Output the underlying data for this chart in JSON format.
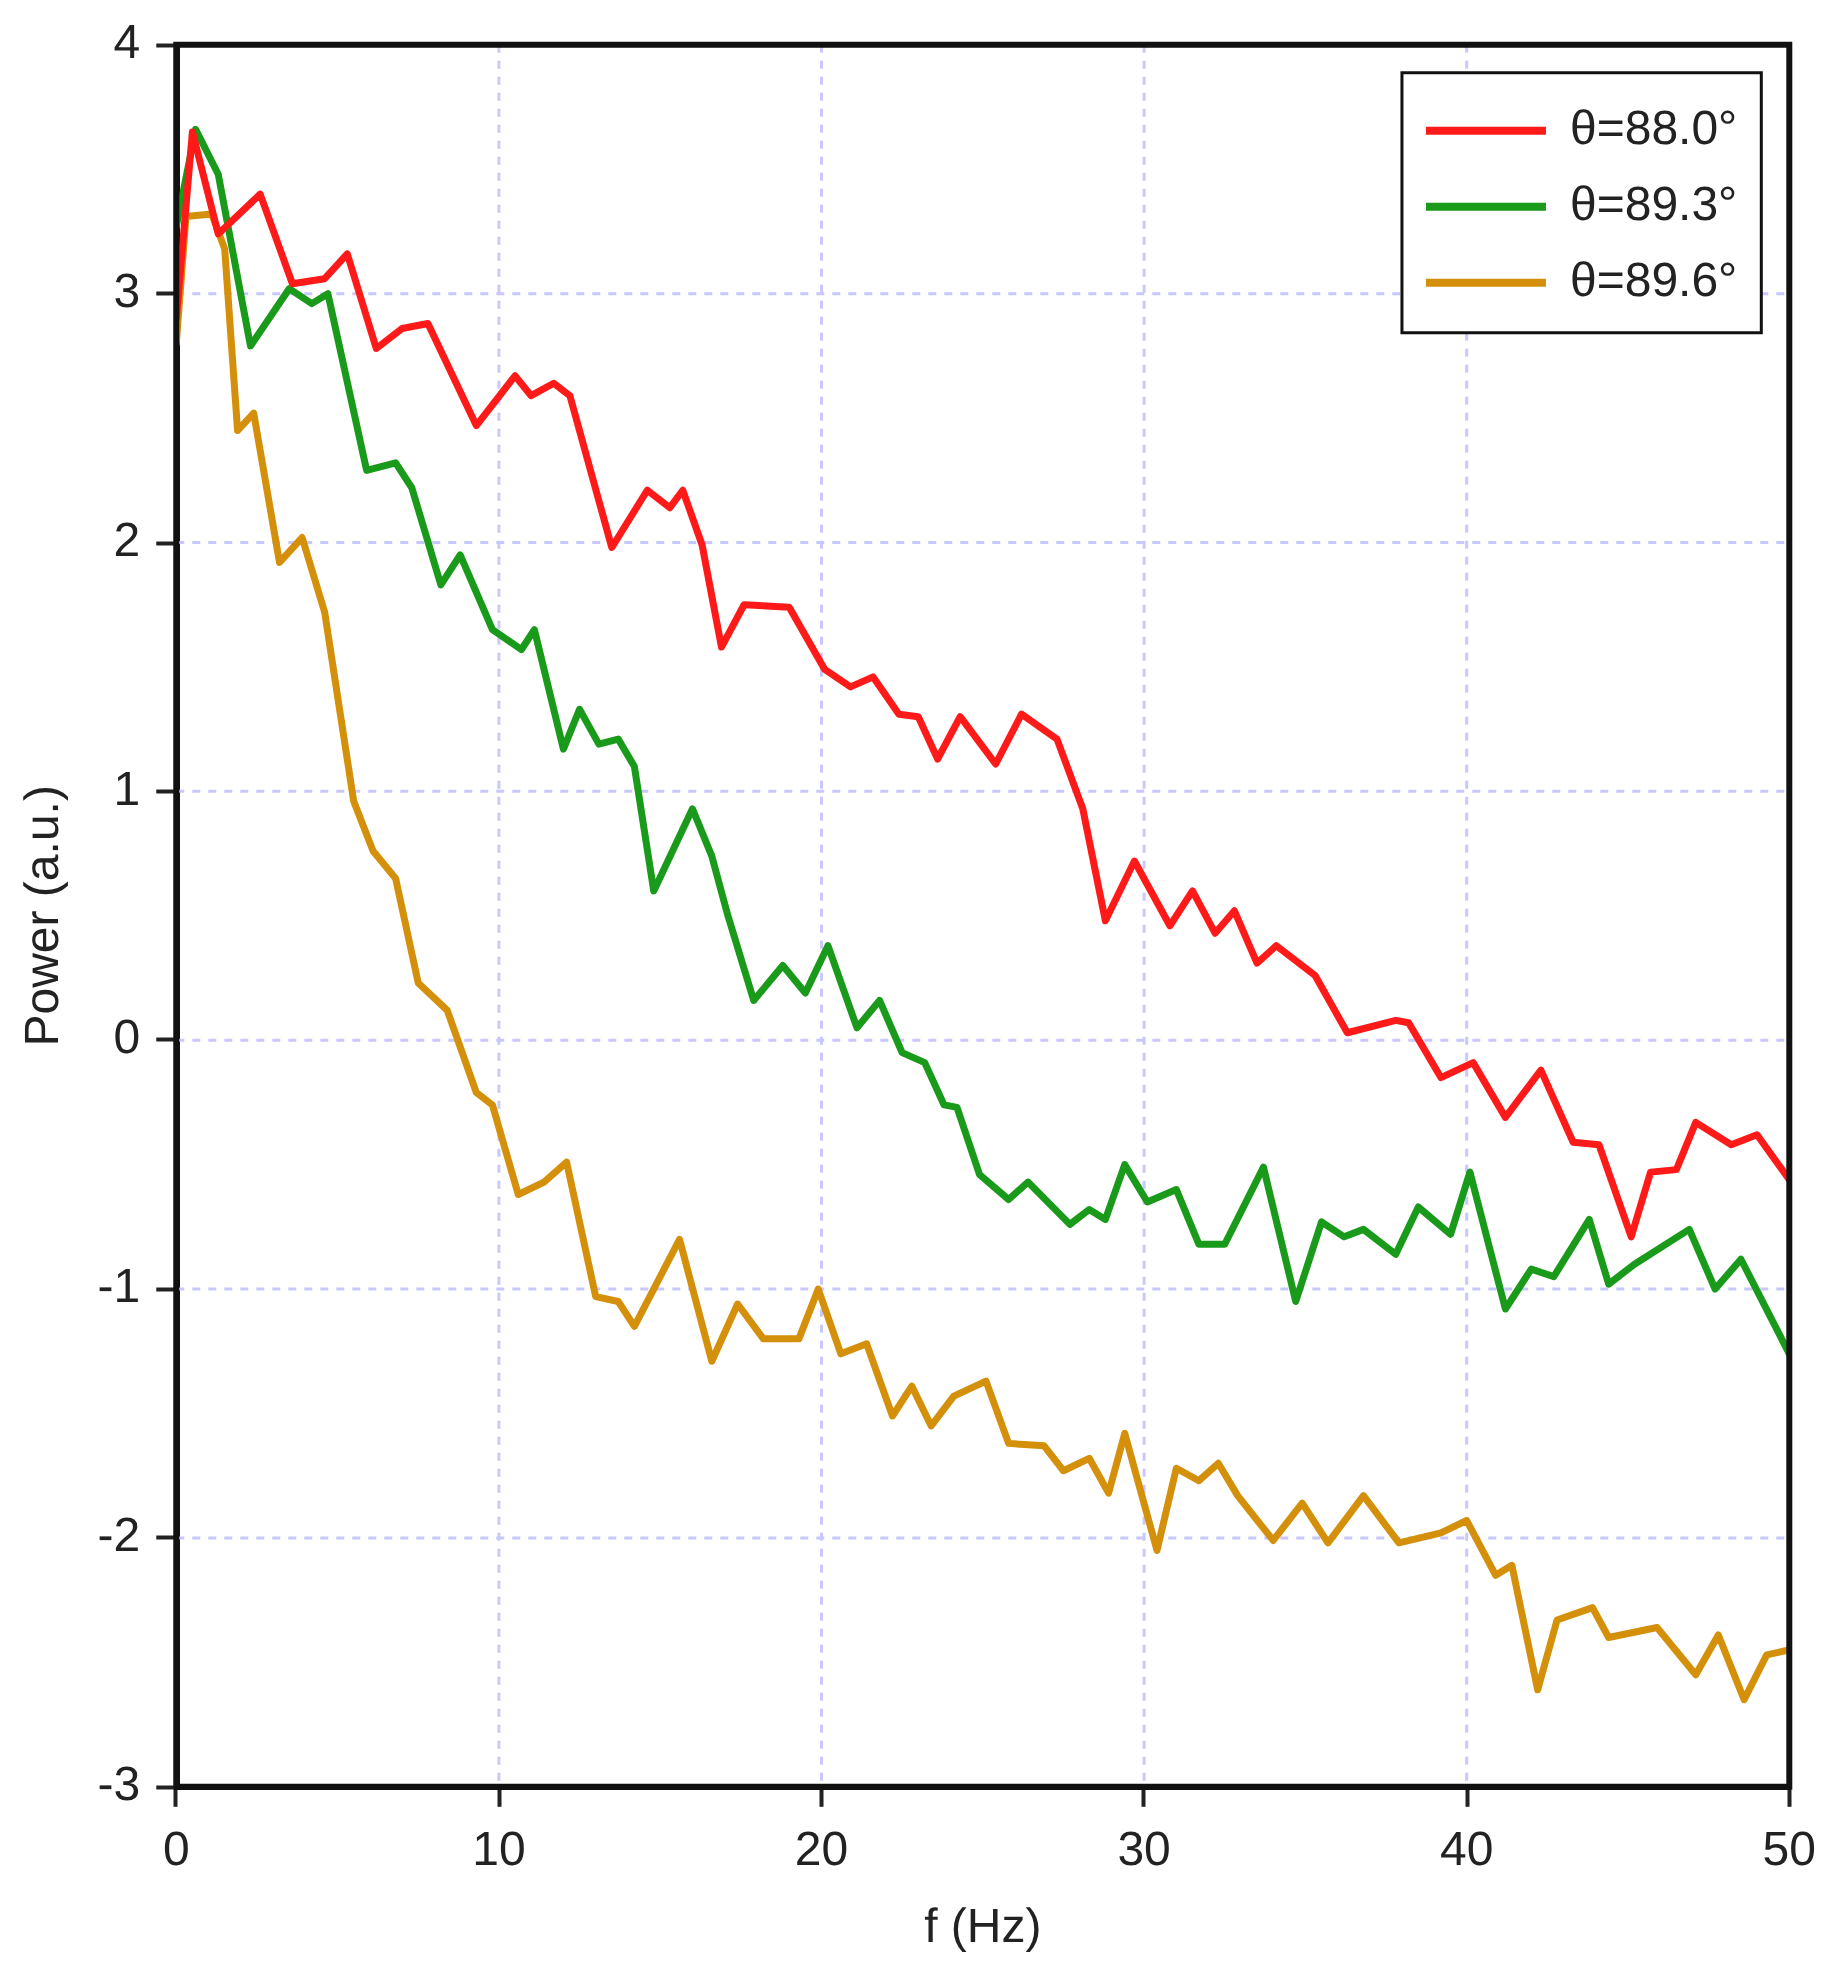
{
  "chart_data": {
    "type": "line",
    "xlabel": "f (Hz)",
    "ylabel": "Power (a.u.)",
    "xlim": [
      0,
      50
    ],
    "xticks": [
      0,
      10,
      20,
      30,
      40,
      50
    ],
    "ylim": [
      -3,
      4
    ],
    "yticks": [
      -3,
      -2,
      -1,
      0,
      1,
      2,
      3,
      4
    ],
    "grid": true,
    "legend": "top right",
    "marker": "none",
    "line_style": "solid",
    "series": [
      {
        "name": "θ=88.0°",
        "color": "#ff1a1a",
        "x": [
          0,
          0.5,
          1.3,
          2.6,
          3.6,
          4.6,
          5.3,
          6.2,
          7.0,
          7.8,
          9.3,
          10.5,
          11.0,
          11.7,
          12.2,
          13.5,
          14.6,
          15.3,
          15.7,
          16.3,
          16.9,
          17.6,
          19.0,
          20.1,
          20.9,
          21.6,
          22.4,
          23.0,
          23.6,
          24.3,
          25.4,
          26.2,
          27.3,
          28.1,
          28.8,
          29.7,
          30.8,
          31.5,
          32.2,
          32.8,
          33.5,
          34.1,
          35.3,
          36.3,
          37.8,
          38.2,
          39.2,
          40.2,
          41.2,
          42.3,
          43.3,
          44.1,
          45.1,
          45.7,
          46.5,
          47.1,
          48.2,
          49.0,
          50
        ],
        "values": [
          2.9,
          3.65,
          3.24,
          3.4,
          3.04,
          3.06,
          3.16,
          2.78,
          2.86,
          2.88,
          2.47,
          2.67,
          2.59,
          2.64,
          2.59,
          1.98,
          2.21,
          2.14,
          2.21,
          1.99,
          1.58,
          1.75,
          1.74,
          1.49,
          1.42,
          1.46,
          1.31,
          1.3,
          1.13,
          1.3,
          1.11,
          1.31,
          1.21,
          0.93,
          0.48,
          0.72,
          0.46,
          0.6,
          0.43,
          0.52,
          0.31,
          0.38,
          0.26,
          0.03,
          0.08,
          0.07,
          -0.15,
          -0.09,
          -0.31,
          -0.12,
          -0.41,
          -0.42,
          -0.79,
          -0.53,
          -0.52,
          -0.33,
          -0.42,
          -0.38,
          -0.56
        ]
      },
      {
        "name": "θ=89.3°",
        "color": "#1a9a1a",
        "x": [
          0,
          0.6,
          1.3,
          2.3,
          3.5,
          4.2,
          4.7,
          5.9,
          6.8,
          7.3,
          8.2,
          8.8,
          9.8,
          10.7,
          11.1,
          12.0,
          12.5,
          13.1,
          13.7,
          14.2,
          14.8,
          16.0,
          16.6,
          17.1,
          17.9,
          18.8,
          19.5,
          20.2,
          21.1,
          21.8,
          22.5,
          23.2,
          23.8,
          24.2,
          24.9,
          25.8,
          26.4,
          27.7,
          28.3,
          28.8,
          29.4,
          30.1,
          31.0,
          31.7,
          32.5,
          33.7,
          34.7,
          35.5,
          36.2,
          36.8,
          37.8,
          38.5,
          39.5,
          40.1,
          41.2,
          42.0,
          42.7,
          43.8,
          44.4,
          45.2,
          46.9,
          47.7,
          48.5,
          50
        ],
        "values": [
          3.27,
          3.66,
          3.48,
          2.79,
          3.02,
          2.96,
          3.0,
          2.29,
          2.32,
          2.22,
          1.83,
          1.95,
          1.65,
          1.57,
          1.65,
          1.17,
          1.33,
          1.19,
          1.21,
          1.1,
          0.6,
          0.93,
          0.74,
          0.5,
          0.16,
          0.3,
          0.19,
          0.38,
          0.05,
          0.16,
          -0.05,
          -0.09,
          -0.26,
          -0.27,
          -0.54,
          -0.64,
          -0.57,
          -0.74,
          -0.68,
          -0.72,
          -0.5,
          -0.65,
          -0.6,
          -0.82,
          -0.82,
          -0.51,
          -1.05,
          -0.73,
          -0.79,
          -0.76,
          -0.86,
          -0.67,
          -0.78,
          -0.53,
          -1.08,
          -0.92,
          -0.95,
          -0.72,
          -0.98,
          -0.9,
          -0.76,
          -1.0,
          -0.88,
          -1.26
        ]
      },
      {
        "name": "θ=89.6°",
        "color": "#d4900a",
        "x": [
          0,
          0.3,
          1.1,
          1.5,
          1.9,
          2.4,
          3.2,
          3.9,
          4.6,
          5.5,
          6.1,
          6.8,
          7.5,
          8.4,
          9.3,
          9.8,
          10.6,
          11.4,
          12.1,
          13.0,
          13.7,
          14.2,
          15.6,
          16.6,
          17.4,
          18.2,
          19.3,
          19.9,
          20.6,
          21.4,
          22.2,
          22.8,
          23.4,
          24.1,
          25.1,
          25.8,
          26.9,
          27.5,
          28.3,
          28.9,
          29.4,
          30.4,
          31.0,
          31.7,
          32.3,
          32.9,
          34.0,
          34.9,
          35.7,
          36.8,
          37.9,
          39.2,
          40.0,
          40.9,
          41.4,
          42.2,
          42.8,
          43.9,
          44.4,
          45.9,
          47.1,
          47.8,
          48.6,
          49.3,
          50
        ],
        "values": [
          2.8,
          3.31,
          3.32,
          3.18,
          2.45,
          2.52,
          1.92,
          2.02,
          1.72,
          0.96,
          0.76,
          0.65,
          0.23,
          0.12,
          -0.21,
          -0.26,
          -0.62,
          -0.57,
          -0.49,
          -1.03,
          -1.05,
          -1.15,
          -0.8,
          -1.29,
          -1.06,
          -1.2,
          -1.2,
          -1.0,
          -1.26,
          -1.22,
          -1.51,
          -1.39,
          -1.55,
          -1.43,
          -1.37,
          -1.62,
          -1.63,
          -1.73,
          -1.68,
          -1.82,
          -1.58,
          -2.05,
          -1.72,
          -1.77,
          -1.7,
          -1.83,
          -2.01,
          -1.86,
          -2.02,
          -1.83,
          -2.02,
          -1.98,
          -1.93,
          -2.15,
          -2.11,
          -2.61,
          -2.33,
          -2.28,
          -2.4,
          -2.36,
          -2.55,
          -2.39,
          -2.65,
          -2.47,
          -2.45
        ]
      }
    ]
  }
}
